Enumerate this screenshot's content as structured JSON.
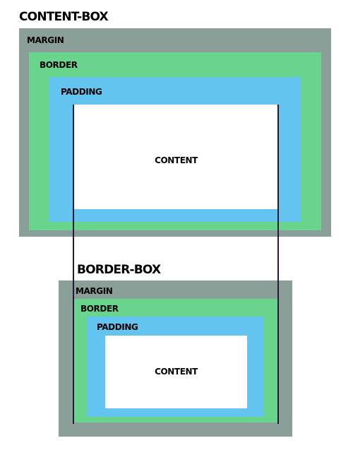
{
  "diagram": {
    "content_box": {
      "title": "CONTENT-BOX",
      "margin_label": "MARGIN",
      "border_label": "BORDER",
      "padding_label": "PADDING",
      "content_label": "CONTENT"
    },
    "border_box": {
      "title": "BORDER-BOX",
      "margin_label": "MARGIN",
      "border_label": "BORDER",
      "padding_label": "PADDING",
      "content_label": "CONTENT"
    },
    "colors": {
      "margin": "#8a9f98",
      "border": "#68d48c",
      "padding": "#64c4f0",
      "content": "#ffffff",
      "guide_line": "#2a1638"
    }
  }
}
